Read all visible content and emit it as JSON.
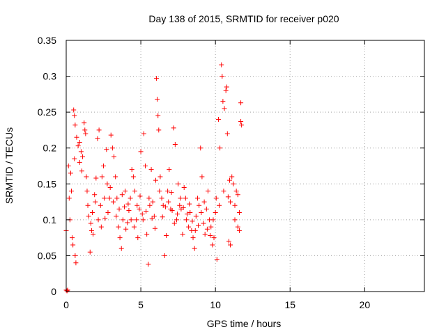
{
  "chart_data": {
    "type": "scatter",
    "title": "Day 138 of 2015, SRMTID for receiver p020",
    "xlabel": "GPS time / hours",
    "ylabel": "SRMTID / TECUs",
    "xlim": [
      0,
      24
    ],
    "ylim": [
      0,
      0.35
    ],
    "x_ticks": [
      0,
      5,
      10,
      15,
      20
    ],
    "x_tick_labels": [
      "0",
      "5",
      "10",
      "15",
      "20"
    ],
    "y_ticks": [
      0,
      0.05,
      0.1,
      0.15,
      0.2,
      0.25,
      0.3,
      0.35
    ],
    "y_tick_labels": [
      "0",
      "0.05",
      "0.1",
      "0.15",
      "0.2",
      "0.25",
      "0.3",
      "0.35"
    ],
    "grid": true,
    "marker": "+",
    "colors": {
      "points": "#ff0000",
      "grid": "#a0a0a0",
      "axes": "#000000",
      "background": "#ffffff"
    },
    "series": [
      {
        "name": "SRMTID",
        "points": [
          [
            0.0,
            0.002
          ],
          [
            0.05,
            0.001
          ],
          [
            0.1,
            0.002
          ],
          [
            0.0,
            0.085
          ],
          [
            0.15,
            0.175
          ],
          [
            0.2,
            0.13
          ],
          [
            0.25,
            0.1
          ],
          [
            0.3,
            0.165
          ],
          [
            0.35,
            0.14
          ],
          [
            0.4,
            0.075
          ],
          [
            0.45,
            0.065
          ],
          [
            0.5,
            0.253
          ],
          [
            0.55,
            0.245
          ],
          [
            0.6,
            0.232
          ],
          [
            0.55,
            0.185
          ],
          [
            0.6,
            0.05
          ],
          [
            0.65,
            0.04
          ],
          [
            0.7,
            0.215
          ],
          [
            0.8,
            0.203
          ],
          [
            0.9,
            0.208
          ],
          [
            1.0,
            0.195
          ],
          [
            1.1,
            0.188
          ],
          [
            1.2,
            0.235
          ],
          [
            1.25,
            0.225
          ],
          [
            1.3,
            0.22
          ],
          [
            1.4,
            0.14
          ],
          [
            1.5,
            0.105
          ],
          [
            1.6,
            0.055
          ],
          [
            1.7,
            0.085
          ],
          [
            1.8,
            0.08
          ],
          [
            1.9,
            0.135
          ],
          [
            2.0,
            0.158
          ],
          [
            2.1,
            0.213
          ],
          [
            2.2,
            0.225
          ],
          [
            2.3,
            0.12
          ],
          [
            2.4,
            0.16
          ],
          [
            2.5,
            0.175
          ],
          [
            2.6,
            0.102
          ],
          [
            2.7,
            0.198
          ],
          [
            2.8,
            0.11
          ],
          [
            2.9,
            0.13
          ],
          [
            3.0,
            0.218
          ],
          [
            3.1,
            0.2
          ],
          [
            3.2,
            0.188
          ],
          [
            3.3,
            0.16
          ],
          [
            3.4,
            0.13
          ],
          [
            3.5,
            0.09
          ],
          [
            3.6,
            0.075
          ],
          [
            3.7,
            0.06
          ],
          [
            3.8,
            0.1
          ],
          [
            3.9,
            0.118
          ],
          [
            4.0,
            0.087
          ],
          [
            4.1,
            0.096
          ],
          [
            4.2,
            0.113
          ],
          [
            4.3,
            0.13
          ],
          [
            4.4,
            0.17
          ],
          [
            4.5,
            0.16
          ],
          [
            4.6,
            0.14
          ],
          [
            4.7,
            0.1
          ],
          [
            4.8,
            0.075
          ],
          [
            4.9,
            0.115
          ],
          [
            5.0,
            0.195
          ],
          [
            5.1,
            0.108
          ],
          [
            5.2,
            0.22
          ],
          [
            5.3,
            0.175
          ],
          [
            5.4,
            0.08
          ],
          [
            5.5,
            0.038
          ],
          [
            5.6,
            0.12
          ],
          [
            5.7,
            0.17
          ],
          [
            5.8,
            0.125
          ],
          [
            5.9,
            0.105
          ],
          [
            6.0,
            0.155
          ],
          [
            6.05,
            0.297
          ],
          [
            6.1,
            0.268
          ],
          [
            6.15,
            0.245
          ],
          [
            6.2,
            0.225
          ],
          [
            6.3,
            0.16
          ],
          [
            6.4,
            0.13
          ],
          [
            6.5,
            0.12
          ],
          [
            6.6,
            0.05
          ],
          [
            6.7,
            0.078
          ],
          [
            6.8,
            0.14
          ],
          [
            6.9,
            0.17
          ],
          [
            7.0,
            0.115
          ],
          [
            7.1,
            0.113
          ],
          [
            7.2,
            0.228
          ],
          [
            7.3,
            0.205
          ],
          [
            7.4,
            0.1
          ],
          [
            7.5,
            0.15
          ],
          [
            7.6,
            0.12
          ],
          [
            7.7,
            0.115
          ],
          [
            7.8,
            0.08
          ],
          [
            7.9,
            0.145
          ],
          [
            8.0,
            0.13
          ],
          [
            8.1,
            0.108
          ],
          [
            8.2,
            0.09
          ],
          [
            8.3,
            0.11
          ],
          [
            8.4,
            0.085
          ],
          [
            8.5,
            0.075
          ],
          [
            8.6,
            0.06
          ],
          [
            8.7,
            0.105
          ],
          [
            8.8,
            0.13
          ],
          [
            8.9,
            0.12
          ],
          [
            9.0,
            0.2
          ],
          [
            9.1,
            0.16
          ],
          [
            9.2,
            0.095
          ],
          [
            9.3,
            0.08
          ],
          [
            9.4,
            0.115
          ],
          [
            9.5,
            0.14
          ],
          [
            9.6,
            0.1
          ],
          [
            9.7,
            0.09
          ],
          [
            9.8,
            0.065
          ],
          [
            9.9,
            0.075
          ],
          [
            10.0,
            0.11
          ],
          [
            10.1,
            0.045
          ],
          [
            10.2,
            0.24
          ],
          [
            10.3,
            0.2
          ],
          [
            10.4,
            0.316
          ],
          [
            10.45,
            0.3
          ],
          [
            10.5,
            0.265
          ],
          [
            10.6,
            0.255
          ],
          [
            10.7,
            0.28
          ],
          [
            10.75,
            0.285
          ],
          [
            10.8,
            0.22
          ],
          [
            10.9,
            0.07
          ],
          [
            11.0,
            0.065
          ],
          [
            11.1,
            0.16
          ],
          [
            11.2,
            0.15
          ],
          [
            11.3,
            0.12
          ],
          [
            11.4,
            0.14
          ],
          [
            11.5,
            0.135
          ],
          [
            11.6,
            0.085
          ],
          [
            11.7,
            0.263
          ],
          [
            11.7,
            0.237
          ],
          [
            11.75,
            0.232
          ],
          [
            11.6,
            0.11
          ],
          [
            11.5,
            0.09
          ],
          [
            11.3,
            0.1
          ],
          [
            11.0,
            0.125
          ],
          [
            10.95,
            0.155
          ],
          [
            0.9,
            0.18
          ],
          [
            1.05,
            0.168
          ],
          [
            1.35,
            0.16
          ],
          [
            1.45,
            0.12
          ],
          [
            1.65,
            0.095
          ],
          [
            1.75,
            0.11
          ],
          [
            1.95,
            0.125
          ],
          [
            2.15,
            0.1
          ],
          [
            2.35,
            0.09
          ],
          [
            2.55,
            0.13
          ],
          [
            2.75,
            0.15
          ],
          [
            2.95,
            0.145
          ],
          [
            3.15,
            0.125
          ],
          [
            3.35,
            0.105
          ],
          [
            3.55,
            0.115
          ],
          [
            3.75,
            0.135
          ],
          [
            3.95,
            0.14
          ],
          [
            4.15,
            0.122
          ],
          [
            4.35,
            0.1
          ],
          [
            4.55,
            0.09
          ],
          [
            4.75,
            0.12
          ],
          [
            4.95,
            0.133
          ],
          [
            5.15,
            0.1
          ],
          [
            5.35,
            0.112
          ],
          [
            5.55,
            0.13
          ],
          [
            5.75,
            0.102
          ],
          [
            5.95,
            0.088
          ],
          [
            6.25,
            0.14
          ],
          [
            6.45,
            0.104
          ],
          [
            6.65,
            0.118
          ],
          [
            6.85,
            0.125
          ],
          [
            7.05,
            0.138
          ],
          [
            7.25,
            0.095
          ],
          [
            7.45,
            0.108
          ],
          [
            7.65,
            0.13
          ],
          [
            7.85,
            0.117
          ],
          [
            8.05,
            0.1
          ],
          [
            8.25,
            0.122
          ],
          [
            8.45,
            0.098
          ],
          [
            8.65,
            0.085
          ],
          [
            8.85,
            0.092
          ],
          [
            9.05,
            0.11
          ],
          [
            9.25,
            0.125
          ],
          [
            9.45,
            0.087
          ],
          [
            9.65,
            0.078
          ],
          [
            9.85,
            0.1
          ],
          [
            10.05,
            0.13
          ],
          [
            10.25,
            0.12
          ],
          [
            10.55,
            0.14
          ],
          [
            10.85,
            0.132
          ]
        ]
      }
    ]
  }
}
